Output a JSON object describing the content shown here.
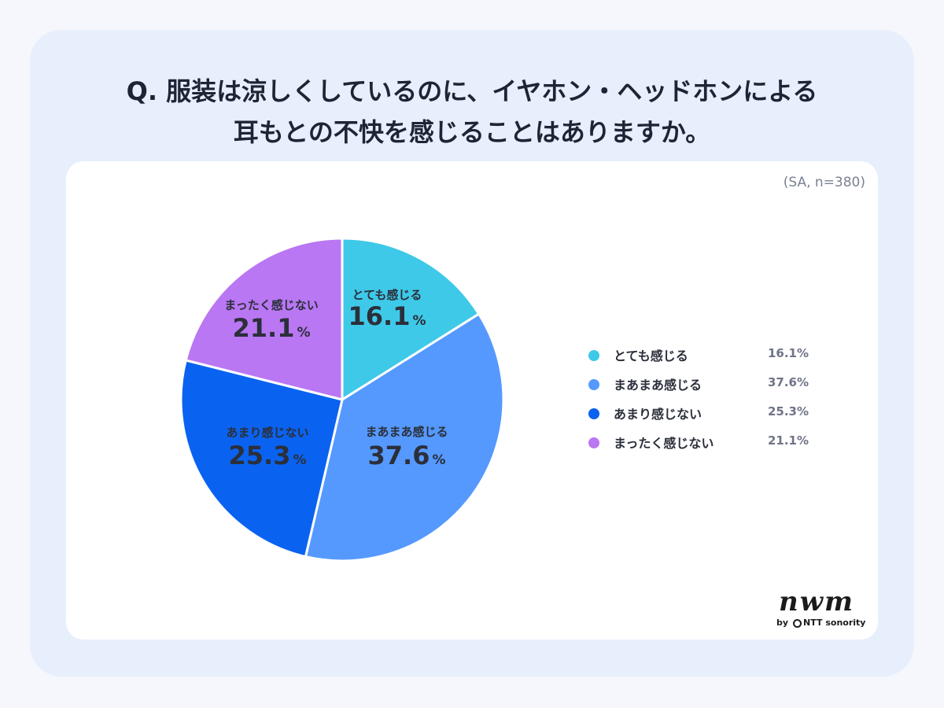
{
  "title_lines": [
    "Q. 服装は涼しくしているのに、イヤホン・ヘッドホンによる",
    "耳もとの不快を感じることはありますか。"
  ],
  "sample_note": "(SA, n=380)",
  "logo": {
    "mark": "nwm",
    "by": "by",
    "brand": "NTT sonority"
  },
  "colors": {
    "outer_bg": "#e7eefc",
    "card_bg": "#ffffff",
    "slice_1": "#3ec9e8",
    "slice_2": "#5599ff",
    "slice_3": "#0a63f0",
    "slice_4": "#b977f3"
  },
  "chart_data": {
    "type": "pie",
    "title": "",
    "categories": [
      "とても感じる",
      "まあまあ感じる",
      "あまり感じない",
      "まったく感じない"
    ],
    "values": [
      16.1,
      37.6,
      25.3,
      21.1
    ],
    "unit": "%",
    "value_labels": [
      "16.1",
      "37.6",
      "25.3",
      "21.1"
    ],
    "legend_values": [
      "16.1%",
      "37.6%",
      "25.3%",
      "21.1%"
    ],
    "colors": [
      "#3ec9e8",
      "#5599ff",
      "#0a63f0",
      "#b977f3"
    ],
    "legend_placement": "right",
    "start_angle": "top, clockwise"
  }
}
